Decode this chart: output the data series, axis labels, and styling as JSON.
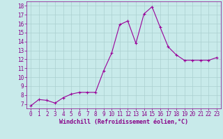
{
  "x": [
    0,
    1,
    2,
    3,
    4,
    5,
    6,
    7,
    8,
    9,
    10,
    11,
    12,
    13,
    14,
    15,
    16,
    17,
    18,
    19,
    20,
    21,
    22,
    23
  ],
  "y": [
    6.8,
    7.5,
    7.4,
    7.1,
    7.7,
    8.1,
    8.3,
    8.3,
    8.3,
    10.7,
    12.7,
    15.9,
    16.3,
    13.8,
    17.1,
    17.9,
    15.6,
    13.4,
    12.5,
    11.9,
    11.9,
    11.9,
    11.9,
    12.2
  ],
  "line_color": "#990099",
  "marker": "+",
  "marker_size": 3.5,
  "line_width": 0.8,
  "xlabel": "Windchill (Refroidissement éolien,°C)",
  "xlim": [
    -0.5,
    23.5
  ],
  "ylim": [
    6.5,
    18.5
  ],
  "yticks": [
    7,
    8,
    9,
    10,
    11,
    12,
    13,
    14,
    15,
    16,
    17,
    18
  ],
  "xticks": [
    0,
    1,
    2,
    3,
    4,
    5,
    6,
    7,
    8,
    9,
    10,
    11,
    12,
    13,
    14,
    15,
    16,
    17,
    18,
    19,
    20,
    21,
    22,
    23
  ],
  "bg_color": "#c8eaea",
  "grid_color": "#aacfcf",
  "tick_color": "#880088",
  "label_color": "#880088",
  "font_size": 5.5,
  "xlabel_font_size": 6.0
}
